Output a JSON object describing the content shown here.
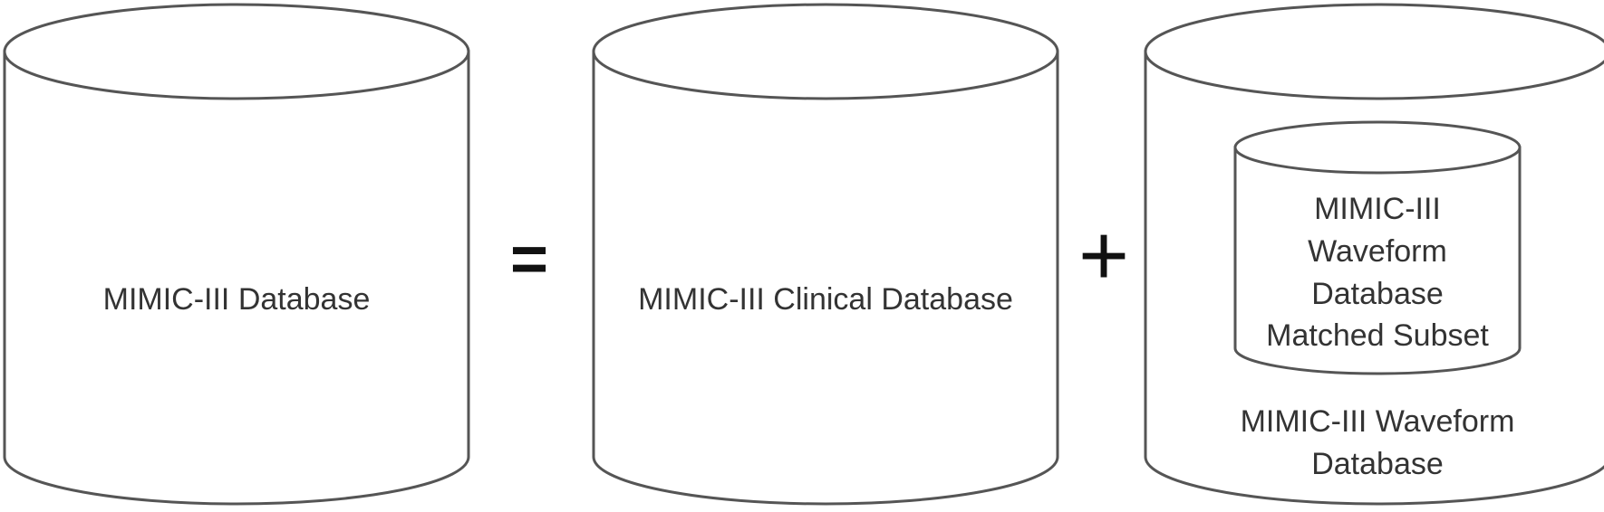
{
  "diagram": {
    "operator_equals": "=",
    "operator_plus": "+",
    "mimic_database": {
      "label": "MIMIC-III Database"
    },
    "clinical_database": {
      "label": "MIMIC-III Clinical Database"
    },
    "waveform_database": {
      "label_lines": [
        "MIMIC-III Waveform",
        "Database"
      ]
    },
    "matched_subset": {
      "label_lines": [
        "MIMIC-III",
        "Waveform",
        "Database",
        "Matched Subset"
      ]
    }
  }
}
